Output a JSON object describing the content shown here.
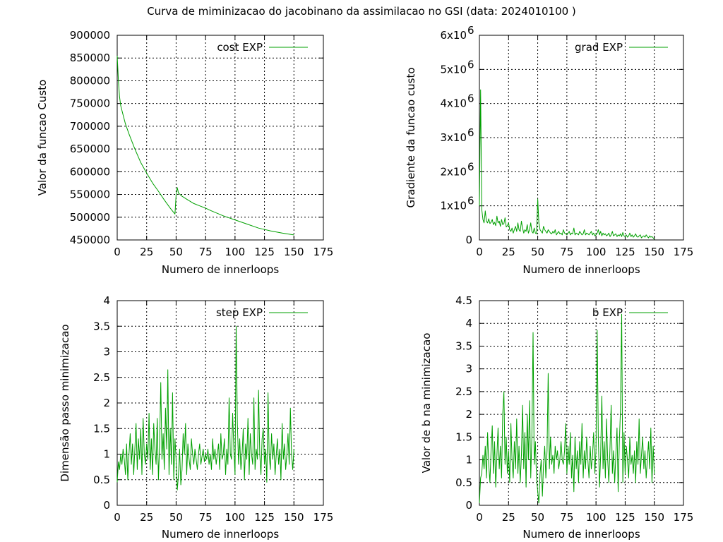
{
  "figure_title": "Curva de miminizacao do jacobinano da assimilacao no GSI (data: 2024010100 )",
  "series_color": "#00a000",
  "chart_data": [
    {
      "id": "cost",
      "type": "line",
      "title": "",
      "xlabel": "Numero de innerloops",
      "ylabel": "Valor da funcao Custo",
      "xlim": [
        0,
        175
      ],
      "ylim": [
        450000,
        900000
      ],
      "xticks": [
        0,
        25,
        50,
        75,
        100,
        125,
        150,
        175
      ],
      "xtick_labels": [
        "0",
        "25",
        "50",
        "75",
        "100",
        "125",
        "150",
        "175"
      ],
      "yticks": [
        450000,
        500000,
        550000,
        600000,
        650000,
        700000,
        750000,
        800000,
        850000,
        900000
      ],
      "ytick_labels": [
        "450000",
        "500000",
        "550000",
        "600000",
        "650000",
        "700000",
        "750000",
        "800000",
        "850000",
        "900000"
      ],
      "ytick_exponents": [],
      "grid": true,
      "legend": {
        "label": "cost EXP",
        "position": "top-right"
      },
      "x": [
        0,
        1,
        2,
        3,
        5,
        7,
        10,
        15,
        20,
        25,
        30,
        35,
        40,
        45,
        49,
        50,
        51,
        52,
        55,
        60,
        65,
        70,
        75,
        80,
        90,
        100,
        110,
        120,
        130,
        140,
        150
      ],
      "y": [
        855000,
        800000,
        765000,
        745000,
        725000,
        705000,
        683000,
        650000,
        620000,
        597000,
        575000,
        557000,
        538000,
        520000,
        507000,
        548000,
        565000,
        553000,
        546000,
        538000,
        530000,
        525000,
        520000,
        514000,
        503000,
        494000,
        485000,
        476000,
        470000,
        465000,
        461000
      ]
    },
    {
      "id": "grad",
      "type": "line",
      "title": "",
      "xlabel": "Numero de innerloops",
      "ylabel": "Gradiente da funcao custo",
      "xlim": [
        0,
        175
      ],
      "ylim": [
        0,
        6000000
      ],
      "xticks": [
        0,
        25,
        50,
        75,
        100,
        125,
        150,
        175
      ],
      "xtick_labels": [
        "0",
        "25",
        "50",
        "75",
        "100",
        "125",
        "150",
        "175"
      ],
      "yticks": [
        0,
        1000000,
        2000000,
        3000000,
        4000000,
        5000000,
        6000000
      ],
      "ytick_labels": [
        "0",
        "1x10",
        "2x10",
        "3x10",
        "4x10",
        "5x10",
        "6x10"
      ],
      "ytick_exponents": [
        "",
        "6",
        "6",
        "6",
        "6",
        "6",
        "6"
      ],
      "grid": true,
      "legend": {
        "label": "grad EXP",
        "position": "top-right"
      },
      "x": [
        0,
        1,
        2,
        3,
        4,
        5,
        6,
        7,
        8,
        9,
        10,
        11,
        12,
        13,
        14,
        15,
        16,
        17,
        18,
        19,
        20,
        21,
        22,
        23,
        24,
        25,
        26,
        27,
        28,
        29,
        30,
        31,
        32,
        33,
        34,
        35,
        36,
        37,
        38,
        39,
        40,
        41,
        42,
        43,
        44,
        45,
        46,
        47,
        48,
        49,
        50,
        51,
        52,
        53,
        54,
        55,
        56,
        57,
        58,
        59,
        60,
        61,
        62,
        63,
        64,
        65,
        66,
        67,
        68,
        69,
        70,
        71,
        72,
        73,
        74,
        75,
        76,
        77,
        78,
        79,
        80,
        81,
        82,
        83,
        84,
        85,
        86,
        87,
        88,
        89,
        90,
        91,
        92,
        93,
        94,
        95,
        96,
        97,
        98,
        99,
        100,
        101,
        102,
        103,
        104,
        105,
        106,
        107,
        108,
        109,
        110,
        111,
        112,
        113,
        114,
        115,
        116,
        117,
        118,
        119,
        120,
        121,
        122,
        123,
        124,
        125,
        126,
        127,
        128,
        129,
        130,
        131,
        132,
        133,
        134,
        135,
        136,
        137,
        138,
        139,
        140,
        141,
        142,
        143,
        144,
        145,
        146,
        147,
        148,
        149,
        150
      ],
      "y": [
        1000000,
        4400000,
        900000,
        600000,
        500000,
        850000,
        550000,
        500000,
        620000,
        480000,
        520000,
        600000,
        450000,
        520000,
        420000,
        700000,
        500000,
        550000,
        400000,
        600000,
        450000,
        480000,
        650000,
        380000,
        420000,
        500000,
        300000,
        250000,
        350000,
        200000,
        300000,
        400000,
        250000,
        500000,
        300000,
        250000,
        550000,
        350000,
        200000,
        300000,
        250000,
        450000,
        200000,
        300000,
        500000,
        250000,
        200000,
        350000,
        200000,
        180000,
        1200000,
        500000,
        300000,
        250000,
        200000,
        400000,
        300000,
        250000,
        200000,
        300000,
        250000,
        200000,
        180000,
        250000,
        200000,
        300000,
        150000,
        200000,
        250000,
        180000,
        200000,
        150000,
        300000,
        200000,
        180000,
        150000,
        200000,
        250000,
        150000,
        200000,
        180000,
        350000,
        150000,
        200000,
        180000,
        150000,
        250000,
        200000,
        150000,
        180000,
        300000,
        150000,
        200000,
        180000,
        150000,
        200000,
        250000,
        150000,
        200000,
        120000,
        150000,
        200000,
        300000,
        150000,
        250000,
        120000,
        200000,
        150000,
        180000,
        120000,
        150000,
        200000,
        100000,
        150000,
        250000,
        120000,
        150000,
        180000,
        100000,
        150000,
        120000,
        180000,
        100000,
        220000,
        120000,
        100000,
        150000,
        80000,
        120000,
        200000,
        100000,
        150000,
        80000,
        120000,
        180000,
        100000,
        80000,
        120000,
        150000,
        60000,
        100000,
        120000,
        80000,
        150000,
        100000,
        60000,
        120000,
        80000,
        100000,
        60000,
        20000
      ]
    },
    {
      "id": "step",
      "type": "line",
      "title": "",
      "xlabel": "Numero de innerloops",
      "ylabel": "Dimensão passo minimizacao",
      "xlim": [
        0,
        175
      ],
      "ylim": [
        0,
        4
      ],
      "xticks": [
        0,
        25,
        50,
        75,
        100,
        125,
        150,
        175
      ],
      "xtick_labels": [
        "0",
        "25",
        "50",
        "75",
        "100",
        "125",
        "150",
        "175"
      ],
      "yticks": [
        0,
        0.5,
        1,
        1.5,
        2,
        2.5,
        3,
        3.5,
        4
      ],
      "ytick_labels": [
        "0",
        "0.5",
        "1",
        "1.5",
        "2",
        "2.5",
        "3",
        "3.5",
        "4"
      ],
      "ytick_exponents": [],
      "grid": true,
      "legend": {
        "label": "step EXP",
        "position": "top-right"
      },
      "x": [
        0,
        1,
        2,
        3,
        4,
        5,
        6,
        7,
        8,
        9,
        10,
        11,
        12,
        13,
        14,
        15,
        16,
        17,
        18,
        19,
        20,
        21,
        22,
        23,
        24,
        25,
        26,
        27,
        28,
        29,
        30,
        31,
        32,
        33,
        34,
        35,
        36,
        37,
        38,
        39,
        40,
        41,
        42,
        43,
        44,
        45,
        46,
        47,
        48,
        49,
        50,
        51,
        52,
        53,
        54,
        55,
        56,
        57,
        58,
        59,
        60,
        61,
        62,
        63,
        64,
        65,
        66,
        67,
        68,
        69,
        70,
        71,
        72,
        73,
        74,
        75,
        76,
        77,
        78,
        79,
        80,
        81,
        82,
        83,
        84,
        85,
        86,
        87,
        88,
        89,
        90,
        91,
        92,
        93,
        94,
        95,
        96,
        97,
        98,
        99,
        100,
        101,
        102,
        103,
        104,
        105,
        106,
        107,
        108,
        109,
        110,
        111,
        112,
        113,
        114,
        115,
        116,
        117,
        118,
        119,
        120,
        121,
        122,
        123,
        124,
        125,
        126,
        127,
        128,
        129,
        130,
        131,
        132,
        133,
        134,
        135,
        136,
        137,
        138,
        139,
        140,
        141,
        142,
        143,
        144,
        145,
        146,
        147,
        148,
        149,
        150
      ],
      "y": [
        0.45,
        0.85,
        0.7,
        1.0,
        0.8,
        1.1,
        0.9,
        0.6,
        1.2,
        0.5,
        1.0,
        1.4,
        0.8,
        1.2,
        0.6,
        1.1,
        1.6,
        0.7,
        1.3,
        0.9,
        1.5,
        0.6,
        1.7,
        1.0,
        0.8,
        1.2,
        0.9,
        1.8,
        0.7,
        1.3,
        0.6,
        1.6,
        1.1,
        0.8,
        1.7,
        0.5,
        1.2,
        2.4,
        0.9,
        1.4,
        0.7,
        1.9,
        1.1,
        2.65,
        0.6,
        1.5,
        0.8,
        2.2,
        0.5,
        1.3,
        0.9,
        0.3,
        0.6,
        1.1,
        0.4,
        0.7,
        1.4,
        1.0,
        1.6,
        0.6,
        1.2,
        0.9,
        0.7,
        1.3,
        1.0,
        0.8,
        1.1,
        0.9,
        0.7,
        1.0,
        1.2,
        0.8,
        0.95,
        1.1,
        0.85,
        1.0,
        0.9,
        1.1,
        0.8,
        1.0,
        0.7,
        1.3,
        0.9,
        1.1,
        0.8,
        1.0,
        1.2,
        0.7,
        1.4,
        0.9,
        1.0,
        1.3,
        0.6,
        1.1,
        0.8,
        2.1,
        1.0,
        0.9,
        1.8,
        1.1,
        0.6,
        3.5,
        1.6,
        0.8,
        1.3,
        0.7,
        1.0,
        1.5,
        0.5,
        1.2,
        0.9,
        1.7,
        0.6,
        1.4,
        1.0,
        0.8,
        2.1,
        0.7,
        1.1,
        0.9,
        2.25,
        1.0,
        0.6,
        1.3,
        1.5,
        0.8,
        1.1,
        0.45,
        2.2,
        1.0,
        0.7,
        1.4,
        0.9,
        1.2,
        0.6,
        1.0,
        1.3,
        0.8,
        1.1,
        0.5,
        1.6,
        0.9,
        1.2,
        0.7,
        1.0,
        1.4,
        0.8,
        1.9,
        1.0,
        0.7,
        1.1
      ]
    },
    {
      "id": "b",
      "type": "line",
      "title": "",
      "xlabel": "Numero de innerloops",
      "ylabel": "Valor de b na minimizacao",
      "xlim": [
        0,
        175
      ],
      "ylim": [
        0,
        4.5
      ],
      "xticks": [
        0,
        25,
        50,
        75,
        100,
        125,
        150,
        175
      ],
      "xtick_labels": [
        "0",
        "25",
        "50",
        "75",
        "100",
        "125",
        "150",
        "175"
      ],
      "yticks": [
        0,
        0.5,
        1,
        1.5,
        2,
        2.5,
        3,
        3.5,
        4,
        4.5
      ],
      "ytick_labels": [
        "0",
        "0.5",
        "1",
        "1.5",
        "2",
        "2.5",
        "3",
        "3.5",
        "4",
        "4.5"
      ],
      "ytick_exponents": [],
      "grid": true,
      "legend": {
        "label": "b EXP",
        "position": "top-right"
      },
      "x": [
        0,
        1,
        2,
        3,
        4,
        5,
        6,
        7,
        8,
        9,
        10,
        11,
        12,
        13,
        14,
        15,
        16,
        17,
        18,
        19,
        20,
        21,
        22,
        23,
        24,
        25,
        26,
        27,
        28,
        29,
        30,
        31,
        32,
        33,
        34,
        35,
        36,
        37,
        38,
        39,
        40,
        41,
        42,
        43,
        44,
        45,
        46,
        47,
        48,
        49,
        50,
        51,
        52,
        53,
        54,
        55,
        56,
        57,
        58,
        59,
        60,
        61,
        62,
        63,
        64,
        65,
        66,
        67,
        68,
        69,
        70,
        71,
        72,
        73,
        74,
        75,
        76,
        77,
        78,
        79,
        80,
        81,
        82,
        83,
        84,
        85,
        86,
        87,
        88,
        89,
        90,
        91,
        92,
        93,
        94,
        95,
        96,
        97,
        98,
        99,
        100,
        101,
        102,
        103,
        104,
        105,
        106,
        107,
        108,
        109,
        110,
        111,
        112,
        113,
        114,
        115,
        116,
        117,
        118,
        119,
        120,
        121,
        122,
        123,
        124,
        125,
        126,
        127,
        128,
        129,
        130,
        131,
        132,
        133,
        134,
        135,
        136,
        137,
        138,
        139,
        140,
        141,
        142,
        143,
        144,
        145,
        146,
        147,
        148,
        149,
        150
      ],
      "y": [
        0.05,
        0.6,
        0.7,
        1.1,
        0.8,
        1.3,
        0.6,
        1.6,
        0.9,
        0.5,
        1.2,
        1.75,
        0.7,
        1.4,
        0.4,
        1.1,
        1.7,
        0.8,
        1.3,
        0.6,
        2.0,
        2.5,
        0.9,
        1.5,
        0.7,
        1.2,
        0.5,
        1.8,
        1.0,
        0.6,
        1.4,
        0.8,
        1.9,
        0.7,
        1.3,
        0.5,
        1.1,
        2.2,
        0.8,
        1.6,
        0.4,
        2.0,
        1.0,
        2.3,
        0.6,
        1.5,
        3.8,
        0.9,
        1.4,
        0.6,
        0.3,
        0.05,
        0.7,
        1.0,
        0.2,
        0.9,
        1.3,
        0.6,
        1.2,
        2.9,
        0.8,
        1.5,
        0.9,
        1.1,
        0.7,
        1.3,
        1.0,
        1.2,
        0.8,
        1.0,
        1.4,
        1.0,
        0.9,
        1.2,
        1.8,
        0.7,
        1.3,
        0.9,
        1.6,
        0.6,
        1.1,
        0.3,
        1.5,
        0.8,
        1.2,
        0.5,
        1.4,
        0.9,
        1.8,
        0.6,
        1.2,
        0.8,
        1.5,
        1.0,
        0.6,
        1.3,
        0.8,
        1.1,
        1.6,
        0.7,
        1.2,
        3.85,
        1.5,
        0.4,
        1.1,
        2.4,
        0.8,
        1.4,
        0.6,
        1.9,
        1.0,
        0.5,
        1.3,
        2.2,
        0.7,
        1.2,
        0.5,
        1.1,
        1.7,
        0.3,
        1.4,
        2.1,
        4.2,
        0.5,
        1.6,
        0.7,
        1.3,
        1.0,
        0.6,
        1.5,
        0.9,
        1.1,
        0.7,
        1.2,
        0.5,
        1.4,
        0.9,
        1.9,
        0.7,
        1.1,
        1.5,
        0.8,
        1.2,
        0.6,
        1.0,
        1.4,
        0.8,
        1.7,
        0.5,
        1.3,
        0.7
      ]
    }
  ]
}
